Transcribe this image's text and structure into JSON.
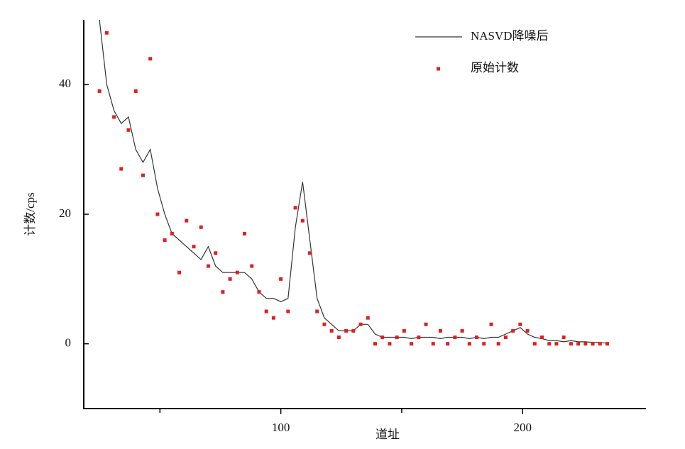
{
  "chart_data": {
    "type": "line",
    "x_label": "道址",
    "y_label": "计数/cps",
    "xlim": [
      18.5,
      251
    ],
    "ylim": [
      -10,
      50
    ],
    "xticks": [
      100,
      200
    ],
    "xminor_ticks": [
      50,
      150
    ],
    "yticks": [
      0,
      20,
      40
    ],
    "legend": "top right",
    "x": [
      25,
      28,
      31,
      34,
      37,
      40,
      43,
      46,
      49,
      52,
      55,
      58,
      61,
      64,
      67,
      70,
      73,
      76,
      79,
      82,
      85,
      88,
      91,
      94,
      97,
      100,
      103,
      106,
      109,
      112,
      115,
      118,
      121,
      124,
      127,
      130,
      133,
      136,
      139,
      142,
      145,
      148,
      151,
      154,
      157,
      160,
      163,
      166,
      169,
      172,
      175,
      178,
      181,
      184,
      187,
      190,
      193,
      196,
      199,
      202,
      205,
      208,
      211,
      214,
      217,
      220,
      223,
      226,
      229,
      232,
      235
    ],
    "series": [
      {
        "name": "NASVD降噪后",
        "type": "line",
        "color": "#333333",
        "values": [
          50,
          40,
          36,
          34,
          35,
          30,
          28,
          30,
          24,
          20,
          17,
          16,
          15,
          14,
          13,
          15,
          12,
          11,
          11,
          11,
          11,
          10,
          8,
          7,
          7,
          6.5,
          7,
          18,
          25,
          16,
          7,
          4,
          3,
          2,
          2,
          2,
          3,
          3,
          1.5,
          1,
          1,
          1,
          1,
          0.8,
          1,
          1,
          1,
          0.8,
          1,
          1,
          1,
          0.8,
          1,
          0.8,
          1,
          1,
          1.5,
          2,
          2.5,
          1.5,
          1,
          0.8,
          0.5,
          0.5,
          0.3,
          0.5,
          0.3,
          0.3,
          0.2,
          0.2,
          0.1
        ]
      },
      {
        "name": "原始计数",
        "type": "scatter",
        "color": "#e02020",
        "values": [
          39,
          48,
          35,
          27,
          33,
          39,
          26,
          44,
          20,
          16,
          17,
          11,
          19,
          15,
          18,
          12,
          14,
          8,
          10,
          11,
          17,
          12,
          8,
          5,
          4,
          10,
          5,
          21,
          19,
          14,
          5,
          3,
          2,
          1,
          2,
          2,
          3,
          4,
          0,
          1,
          0,
          1,
          2,
          0,
          1,
          3,
          0,
          2,
          0,
          1,
          2,
          0,
          1,
          0,
          3,
          0,
          1,
          2,
          3,
          2,
          0,
          1,
          0,
          0,
          1,
          0,
          0,
          0,
          0,
          0,
          0
        ]
      }
    ]
  }
}
